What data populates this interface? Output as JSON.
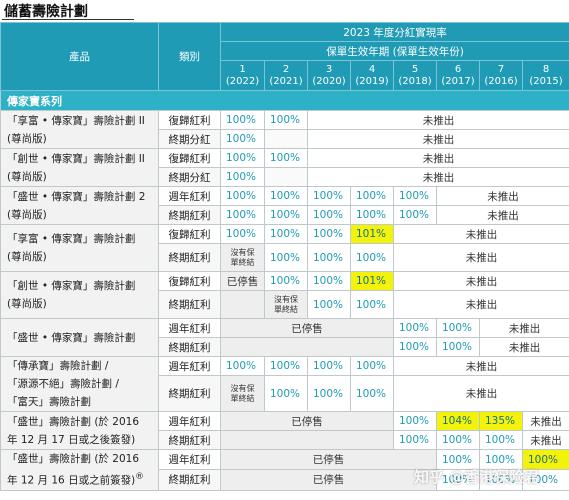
{
  "title": "儲蓄壽險計劃",
  "header": {
    "product": "產品",
    "category": "類別",
    "realization": "2023 年度分紅實現率",
    "policy_year": "保單生效年期 (保單生效年份)",
    "years": [
      {
        "n": "1",
        "y": "(2022)"
      },
      {
        "n": "2",
        "y": "(2021)"
      },
      {
        "n": "3",
        "y": "(2020)"
      },
      {
        "n": "4",
        "y": "(2019)"
      },
      {
        "n": "5",
        "y": "(2018)"
      },
      {
        "n": "6",
        "y": "(2017)"
      },
      {
        "n": "7",
        "y": "(2016)"
      },
      {
        "n": "8",
        "y": "(2015)"
      }
    ]
  },
  "series_title": "傳家寶系列",
  "labels": {
    "reversionary": "復歸紅利",
    "terminal": "終期紅利",
    "terminal_div": "終期分紅",
    "annual": "週年紅利",
    "not_launched": "未推出",
    "discontinued": "已停售",
    "no_maturity_1": "沒有保",
    "no_maturity_2": "單終結"
  },
  "products": {
    "p1": [
      "「享富 • 傳家寶」壽險計劃 II",
      "(尊尚版)"
    ],
    "p2": [
      "「創世 • 傳家寶」壽險計劃 II",
      "(尊尚版)"
    ],
    "p3": [
      "「盛世 • 傳家寶」壽險計劃 2",
      "(尊尚版)"
    ],
    "p4": [
      "「享富 • 傳家寶」壽險計劃",
      "(尊尚版)"
    ],
    "p5": [
      "「創世 • 傳家寶」壽險計劃",
      "(尊尚版)"
    ],
    "p6": [
      "「盛世 • 傳家寶」壽險計劃"
    ],
    "p7": [
      "「傳承寶」壽險計劃 /",
      "「源源不絕」壽險計劃 /",
      "「富天」壽險計劃"
    ],
    "p8": [
      "「盛世」壽險計劃 (於 2016",
      "年 12 月 17 日或之後簽發)"
    ],
    "p9": [
      "「盛世」壽險計劃 (於 2016",
      "年 12 月 16 日或之前簽發)"
    ]
  },
  "v100": "100%",
  "v101": "101%",
  "v104": "104%",
  "v135": "135%",
  "footnote_mark": "®",
  "watermark": "知乎 @香港保险君"
}
